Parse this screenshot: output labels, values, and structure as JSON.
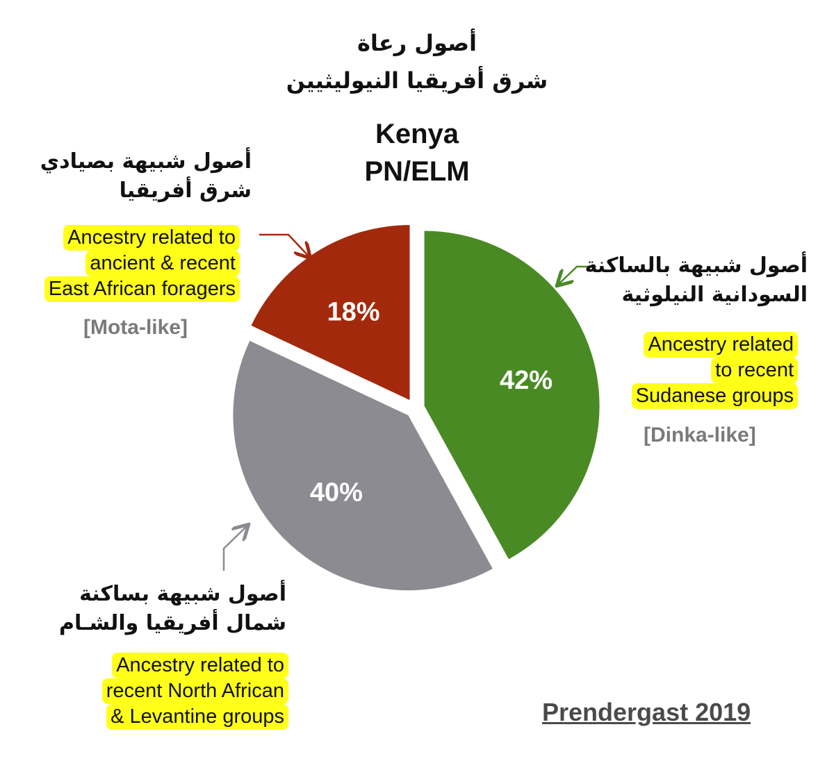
{
  "chart_data": {
    "type": "pie",
    "title_ar": [
      "أصول رعاة",
      "شرق أفريقيا النيوليثيين"
    ],
    "subtitle": [
      "Kenya",
      "PN/ELM"
    ],
    "slices": [
      {
        "name": "green",
        "value": 42,
        "label": "42%",
        "color": "#4a8a24",
        "ar": [
          "أصول شبيهة بالساكنة",
          "السودانية النيلوثية"
        ],
        "en": [
          "Ancestry related",
          "to recent",
          "Sudanese groups"
        ],
        "tag": "[Dinka-like]"
      },
      {
        "name": "gray",
        "value": 40,
        "label": "40%",
        "color": "#8b8b91",
        "ar": [
          "أصول شبيهة بساكنة",
          "شمال أفريقيا والشـام"
        ],
        "en": [
          "Ancestry related to",
          "recent North African",
          "& Levantine groups"
        ]
      },
      {
        "name": "red",
        "value": 18,
        "label": "18%",
        "color": "#a3290c",
        "ar": [
          "أصول شبيهة بصيادي",
          "شرق أفريقيا"
        ],
        "en": [
          "Ancestry related to",
          "ancient & recent",
          "East African foragers"
        ],
        "tag": "[Mota-like]"
      }
    ],
    "citation": "Prendergast 2019"
  }
}
